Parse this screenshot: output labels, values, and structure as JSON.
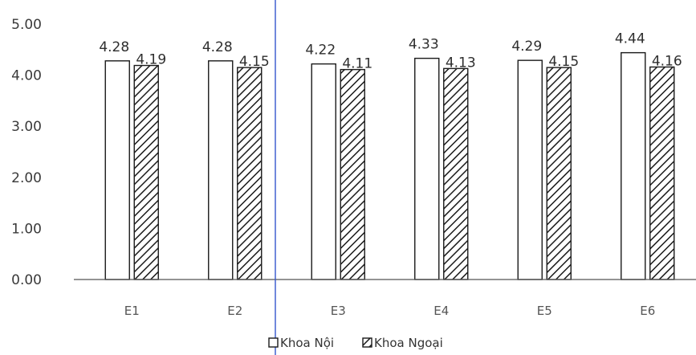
{
  "chart_data": {
    "type": "bar",
    "categories": [
      "E1",
      "E2",
      "E3",
      "E4",
      "E5",
      "E6"
    ],
    "series": [
      {
        "name": "Khoa Nội",
        "values": [
          4.28,
          4.28,
          4.22,
          4.33,
          4.29,
          4.44
        ],
        "fill": "white"
      },
      {
        "name": "Khoa Ngoại",
        "values": [
          4.19,
          4.15,
          4.11,
          4.13,
          4.15,
          4.16
        ],
        "fill": "hatched"
      }
    ],
    "data_labels": [
      [
        "4.28",
        "4.28",
        "4.22",
        "4.33",
        "4.29",
        "4.44"
      ],
      [
        "4.19",
        "4.15",
        "4.11",
        "4.13",
        "4.15",
        "4.16"
      ]
    ],
    "y_ticks": [
      "0.00",
      "1.00",
      "2.00",
      "3.00",
      "4.00",
      "5.00"
    ],
    "ylim": [
      0,
      5
    ],
    "grid": false,
    "legend": "bottom",
    "title": "",
    "xlabel": "",
    "ylabel": "",
    "colors": {
      "bar_stroke": "#1a1a1a",
      "hatch": "#1a1a1a",
      "axis": "#555555",
      "divider": "#3355cc"
    }
  }
}
